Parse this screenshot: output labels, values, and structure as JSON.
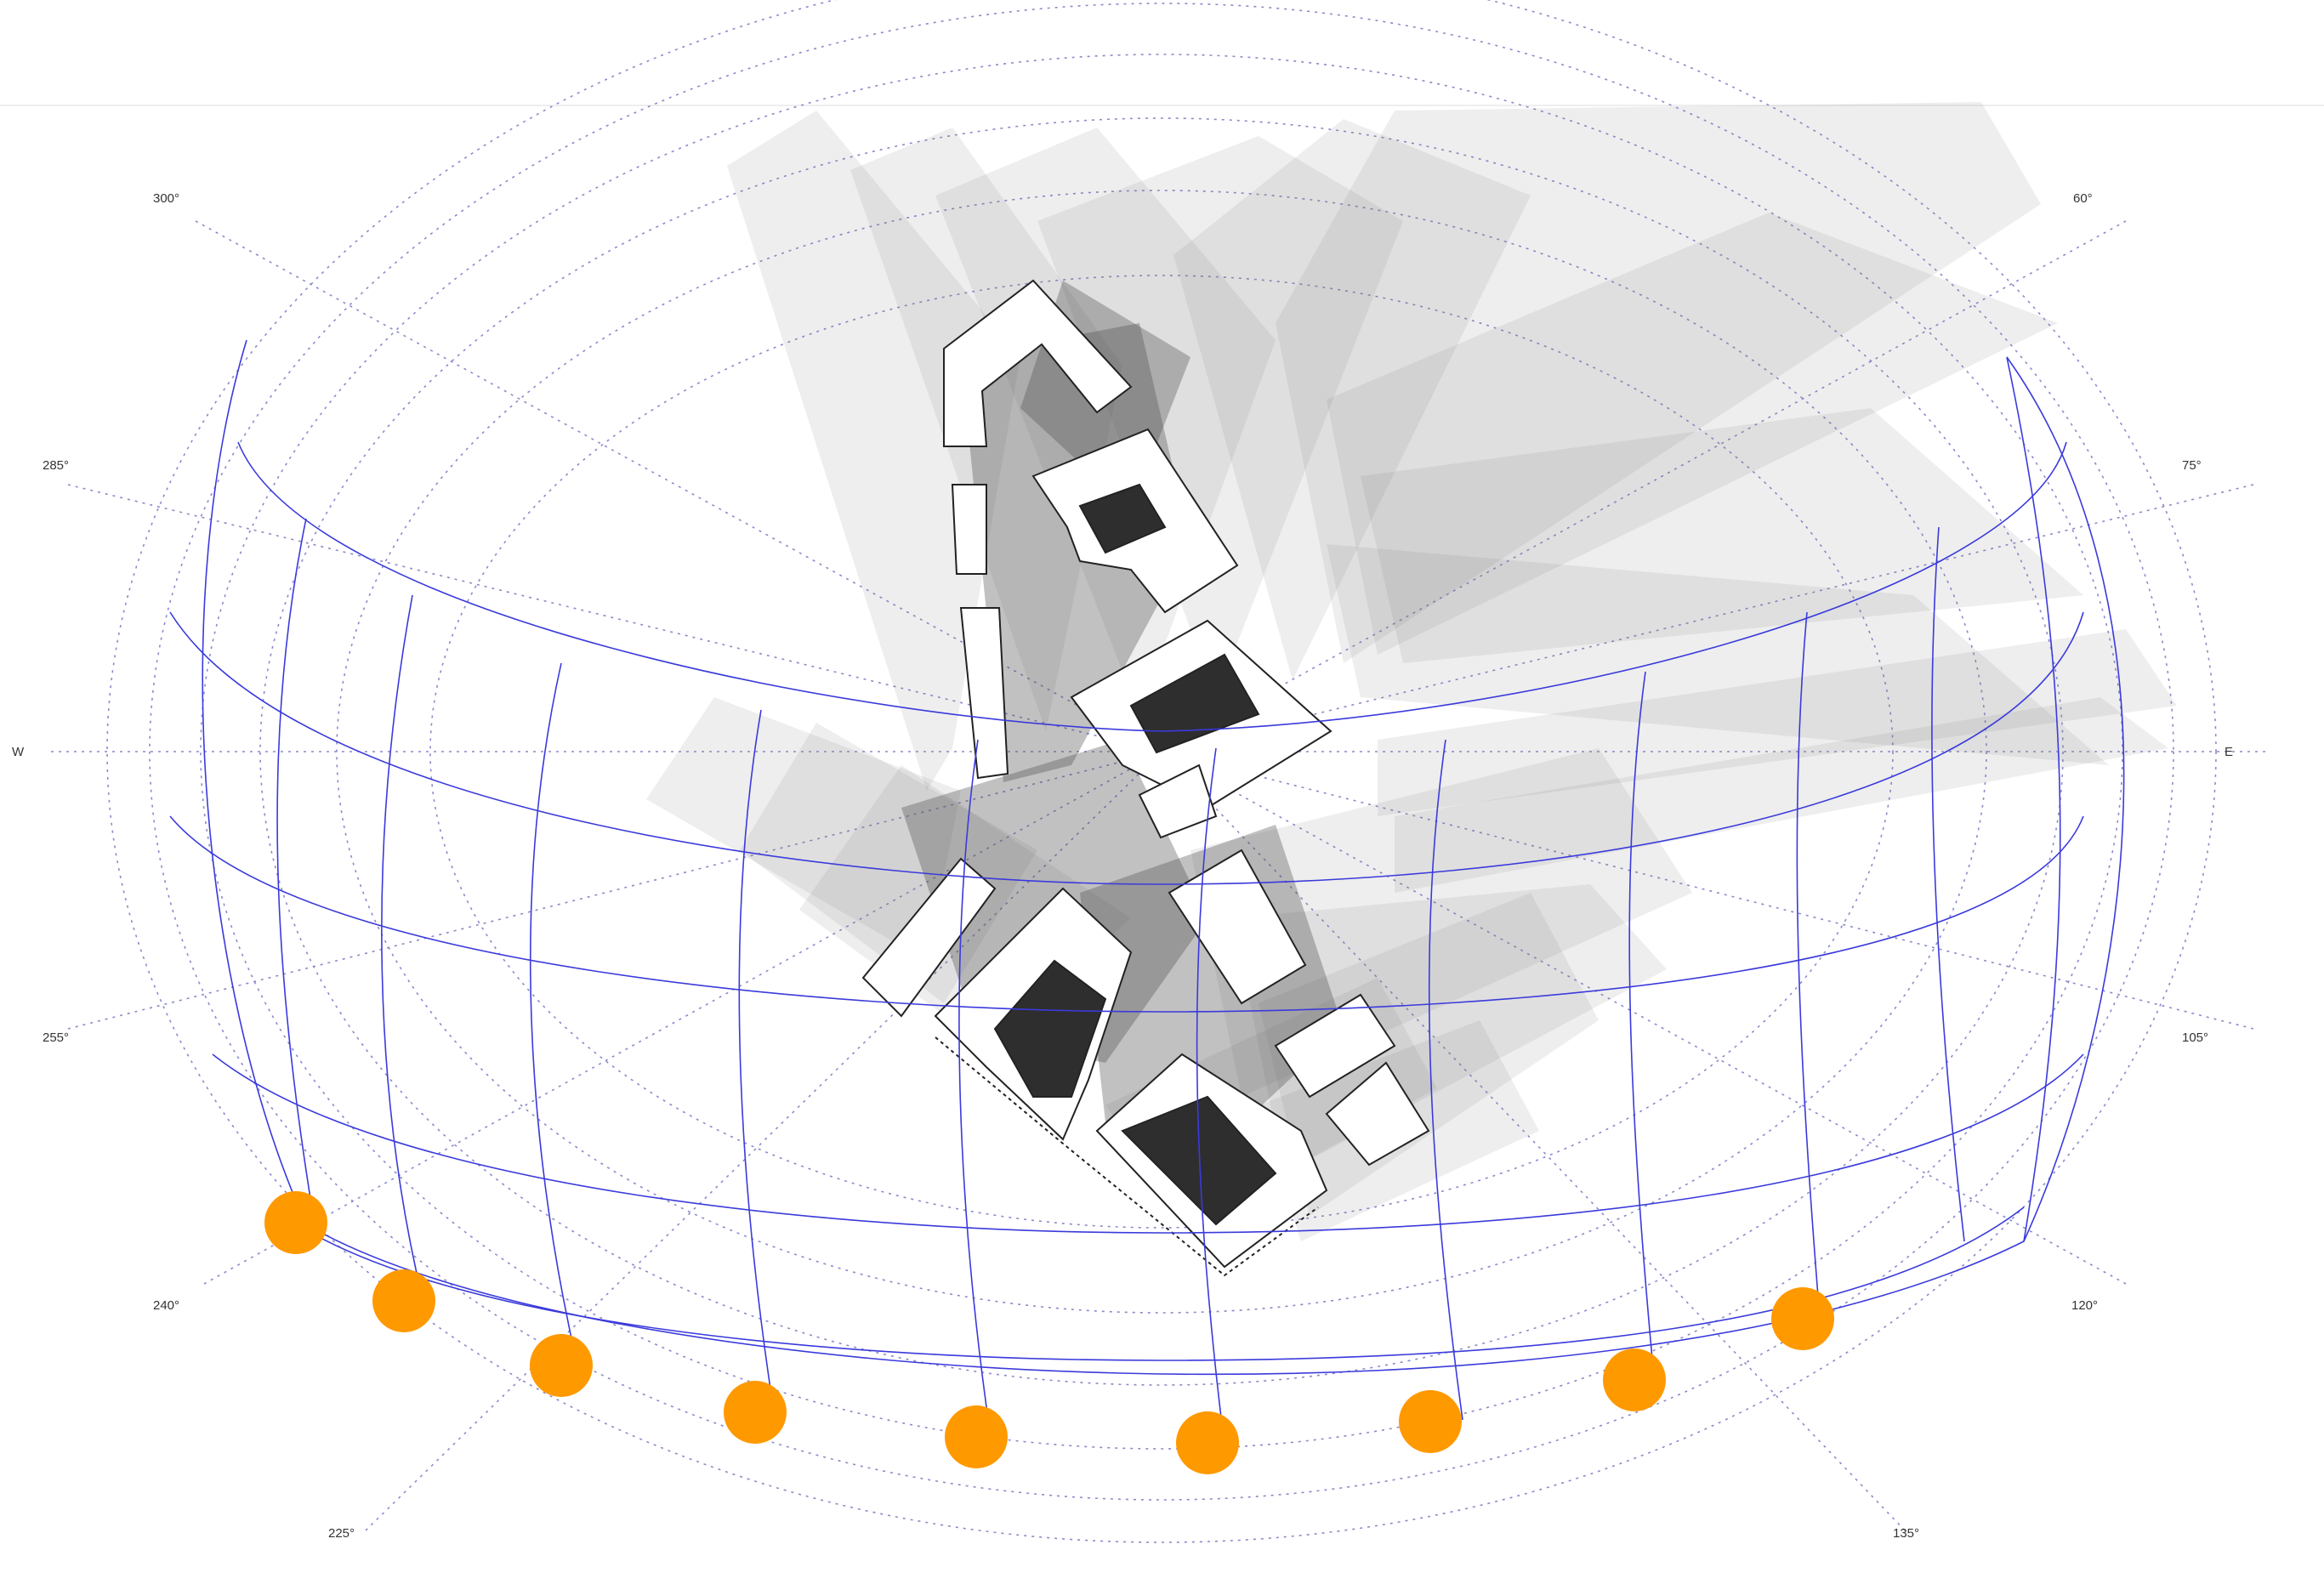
{
  "compass_labels": [
    {
      "id": "300",
      "text": "300°"
    },
    {
      "id": "60",
      "text": "60°"
    },
    {
      "id": "285",
      "text": "285°"
    },
    {
      "id": "75",
      "text": "75°"
    },
    {
      "id": "w",
      "text": "W"
    },
    {
      "id": "e",
      "text": "E"
    },
    {
      "id": "255",
      "text": "255°"
    },
    {
      "id": "105",
      "text": "105°"
    },
    {
      "id": "240",
      "text": "240°"
    },
    {
      "id": "120",
      "text": "120°"
    },
    {
      "id": "225",
      "text": "225°"
    },
    {
      "id": "135",
      "text": "135°"
    }
  ],
  "colors": {
    "sun_path": "#3a3adc",
    "sun_marker": "#ff9900",
    "shadow": "#7a7a7a",
    "building": "#ffffff",
    "courtyard": "#2e2e2e",
    "grid": "#8a8acc"
  },
  "sun_markers_count_label": "",
  "icons": [
    "sun-marker",
    "building-footprint",
    "shadow-fan"
  ]
}
